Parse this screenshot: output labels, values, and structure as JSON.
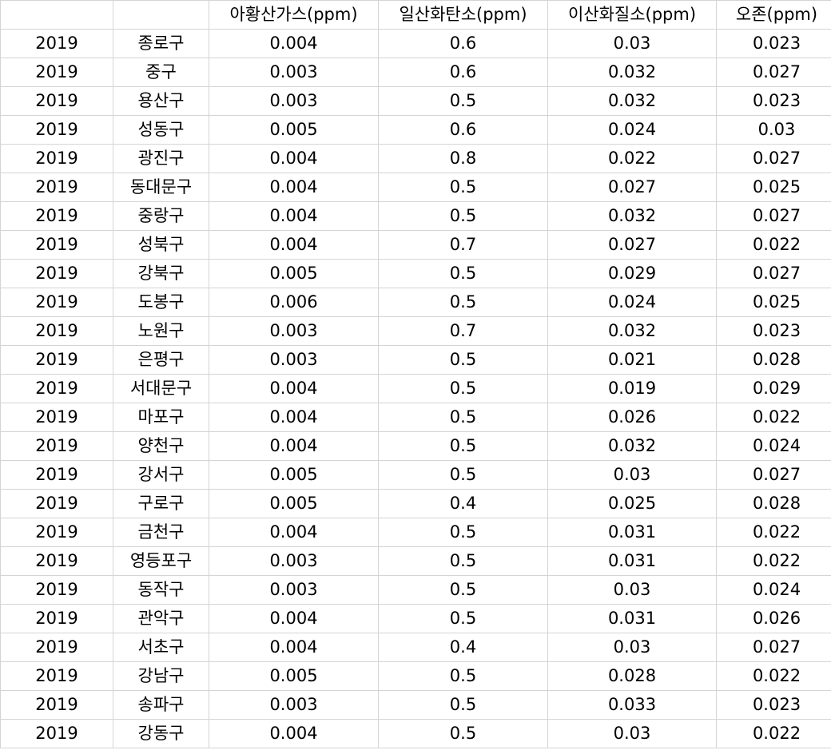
{
  "headers": {
    "year": "",
    "district": "",
    "so2": "아황산가스(ppm)",
    "co": "일산화탄소(ppm)",
    "no2": "이산화질소(ppm)",
    "o3": "오존(ppm)"
  },
  "rows": [
    {
      "year": "2019",
      "district": "종로구",
      "so2": "0.004",
      "co": "0.6",
      "no2": "0.03",
      "o3": "0.023"
    },
    {
      "year": "2019",
      "district": "중구",
      "so2": "0.003",
      "co": "0.6",
      "no2": "0.032",
      "o3": "0.027"
    },
    {
      "year": "2019",
      "district": "용산구",
      "so2": "0.003",
      "co": "0.5",
      "no2": "0.032",
      "o3": "0.023"
    },
    {
      "year": "2019",
      "district": "성동구",
      "so2": "0.005",
      "co": "0.6",
      "no2": "0.024",
      "o3": "0.03"
    },
    {
      "year": "2019",
      "district": "광진구",
      "so2": "0.004",
      "co": "0.8",
      "no2": "0.022",
      "o3": "0.027"
    },
    {
      "year": "2019",
      "district": "동대문구",
      "so2": "0.004",
      "co": "0.5",
      "no2": "0.027",
      "o3": "0.025"
    },
    {
      "year": "2019",
      "district": "중랑구",
      "so2": "0.004",
      "co": "0.5",
      "no2": "0.032",
      "o3": "0.027"
    },
    {
      "year": "2019",
      "district": "성북구",
      "so2": "0.004",
      "co": "0.7",
      "no2": "0.027",
      "o3": "0.022"
    },
    {
      "year": "2019",
      "district": "강북구",
      "so2": "0.005",
      "co": "0.5",
      "no2": "0.029",
      "o3": "0.027"
    },
    {
      "year": "2019",
      "district": "도봉구",
      "so2": "0.006",
      "co": "0.5",
      "no2": "0.024",
      "o3": "0.025"
    },
    {
      "year": "2019",
      "district": "노원구",
      "so2": "0.003",
      "co": "0.7",
      "no2": "0.032",
      "o3": "0.023"
    },
    {
      "year": "2019",
      "district": "은평구",
      "so2": "0.003",
      "co": "0.5",
      "no2": "0.021",
      "o3": "0.028"
    },
    {
      "year": "2019",
      "district": "서대문구",
      "so2": "0.004",
      "co": "0.5",
      "no2": "0.019",
      "o3": "0.029"
    },
    {
      "year": "2019",
      "district": "마포구",
      "so2": "0.004",
      "co": "0.5",
      "no2": "0.026",
      "o3": "0.022"
    },
    {
      "year": "2019",
      "district": "양천구",
      "so2": "0.004",
      "co": "0.5",
      "no2": "0.032",
      "o3": "0.024"
    },
    {
      "year": "2019",
      "district": "강서구",
      "so2": "0.005",
      "co": "0.5",
      "no2": "0.03",
      "o3": "0.027"
    },
    {
      "year": "2019",
      "district": "구로구",
      "so2": "0.005",
      "co": "0.4",
      "no2": "0.025",
      "o3": "0.028"
    },
    {
      "year": "2019",
      "district": "금천구",
      "so2": "0.004",
      "co": "0.5",
      "no2": "0.031",
      "o3": "0.022"
    },
    {
      "year": "2019",
      "district": "영등포구",
      "so2": "0.003",
      "co": "0.5",
      "no2": "0.031",
      "o3": "0.022"
    },
    {
      "year": "2019",
      "district": "동작구",
      "so2": "0.003",
      "co": "0.5",
      "no2": "0.03",
      "o3": "0.024"
    },
    {
      "year": "2019",
      "district": "관악구",
      "so2": "0.004",
      "co": "0.5",
      "no2": "0.031",
      "o3": "0.026"
    },
    {
      "year": "2019",
      "district": "서초구",
      "so2": "0.004",
      "co": "0.4",
      "no2": "0.03",
      "o3": "0.027"
    },
    {
      "year": "2019",
      "district": "강남구",
      "so2": "0.005",
      "co": "0.5",
      "no2": "0.028",
      "o3": "0.022"
    },
    {
      "year": "2019",
      "district": "송파구",
      "so2": "0.003",
      "co": "0.5",
      "no2": "0.033",
      "o3": "0.023"
    },
    {
      "year": "2019",
      "district": "강동구",
      "so2": "0.004",
      "co": "0.5",
      "no2": "0.03",
      "o3": "0.022"
    }
  ]
}
